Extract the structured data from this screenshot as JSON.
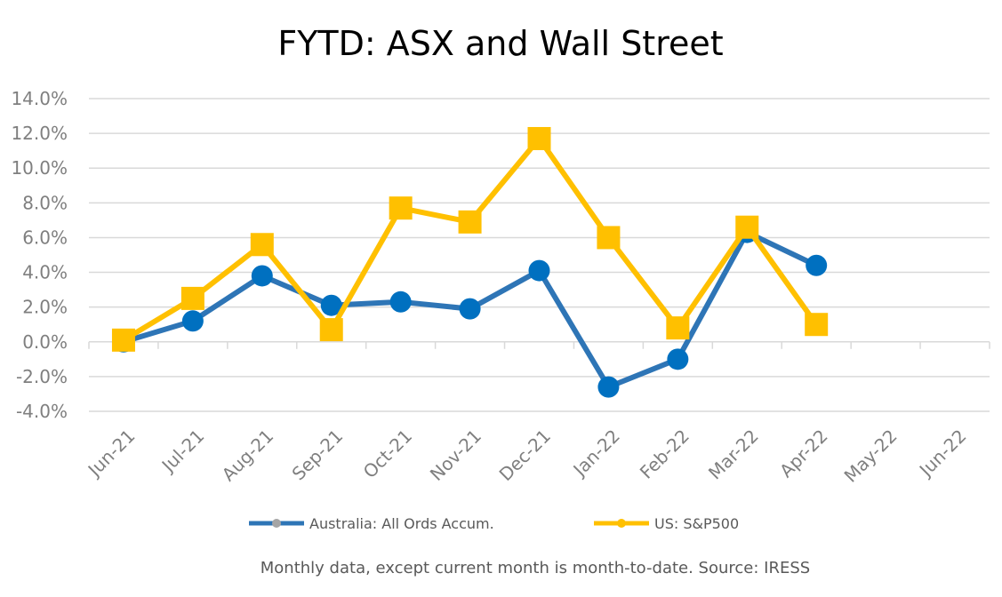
{
  "chart_data": {
    "type": "line",
    "title": "FYTD: ASX and Wall Street",
    "categories": [
      "Jun-21",
      "Jul-21",
      "Aug-21",
      "Sep-21",
      "Oct-21",
      "Nov-21",
      "Dec-21",
      "Jan-22",
      "Feb-22",
      "Mar-22",
      "Apr-22",
      "May-22",
      "Jun-22"
    ],
    "y_ticks": [
      "14.0%",
      "12.0%",
      "10.0%",
      "8.0%",
      "6.0%",
      "4.0%",
      "2.0%",
      "0.0%",
      "-2.0%",
      "-4.0%"
    ],
    "ylim": [
      -4,
      14
    ],
    "grid": true,
    "legend_position": "bottom",
    "series": [
      {
        "name": "Australia: All Ords Accum.",
        "color": "#2e75b6",
        "marker_color": "#0070c0",
        "marker": "circle",
        "values": [
          0.0,
          1.2,
          3.8,
          2.1,
          2.3,
          1.9,
          4.1,
          -2.6,
          -1.0,
          6.3,
          4.4,
          null,
          null
        ]
      },
      {
        "name": "US: S&P500",
        "color": "#ffc000",
        "marker_color": "#ffc000",
        "marker": "square",
        "values": [
          0.1,
          2.5,
          5.6,
          0.7,
          7.7,
          6.9,
          11.7,
          6.0,
          0.8,
          6.6,
          1.0,
          null,
          null
        ]
      }
    ],
    "footnote": "Monthly data, except current month is month-to-date.  Source: IRESS"
  }
}
